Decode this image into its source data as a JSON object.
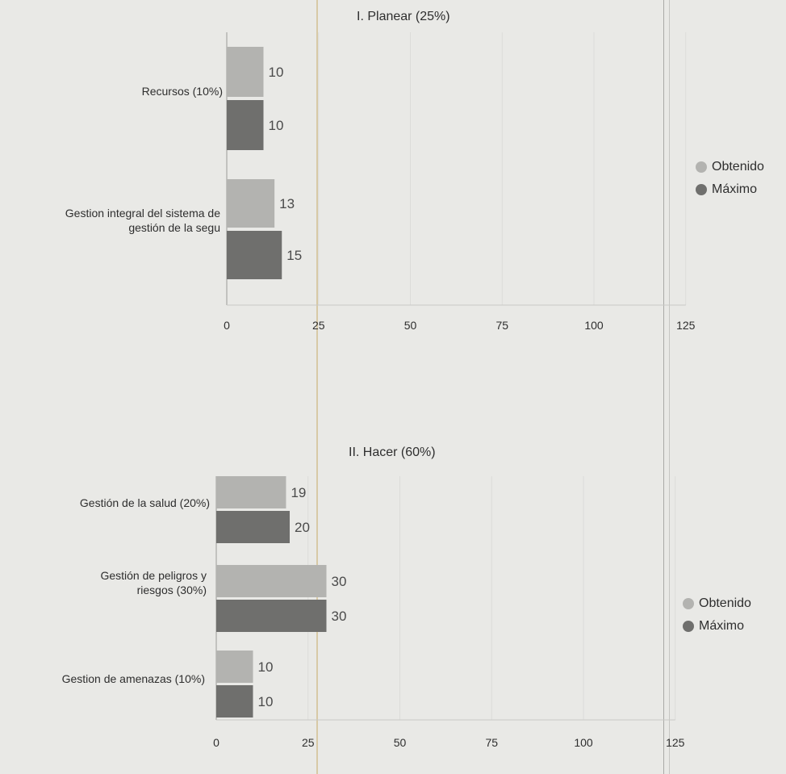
{
  "chart_data": [
    {
      "type": "bar",
      "title": "I. Planear (25%)",
      "categories": [
        "Recursos (10%)",
        "Gestion integral del sistema de gestión de la segu"
      ],
      "series": [
        {
          "name": "Obtenido",
          "values": [
            10,
            13
          ]
        },
        {
          "name": "Máximo",
          "values": [
            10,
            15
          ]
        }
      ],
      "xlim": [
        0,
        125
      ],
      "xticks": [
        "0",
        "25",
        "50",
        "75",
        "100",
        "125"
      ],
      "orientation": "horizontal",
      "legend": "right",
      "grid": true,
      "colors": {
        "Obtenido": "#b3b3b0",
        "Máximo": "#6f6f6d"
      }
    },
    {
      "type": "bar",
      "title": "II. Hacer (60%)",
      "categories": [
        "Gestión de la salud (20%)",
        "Gestión de peligros y riesgos (30%)",
        "Gestion de amenazas (10%)"
      ],
      "series": [
        {
          "name": "Obtenido",
          "values": [
            19,
            30,
            10
          ]
        },
        {
          "name": "Máximo",
          "values": [
            20,
            30,
            10
          ]
        }
      ],
      "xlim": [
        0,
        125
      ],
      "xticks": [
        "0",
        "25",
        "50",
        "75",
        "100",
        "125"
      ],
      "orientation": "horizontal",
      "legend": "right",
      "grid": true,
      "colors": {
        "Obtenido": "#b3b3b0",
        "Máximo": "#6f6f6d"
      }
    }
  ]
}
